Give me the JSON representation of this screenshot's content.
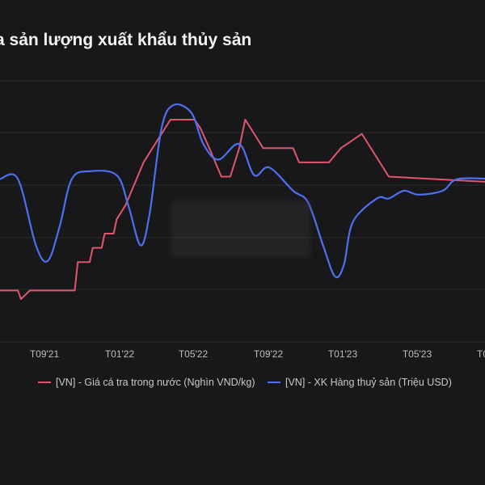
{
  "title": "a sản lượng xuất khẩu thủy sản",
  "colors": {
    "background": "#18181b",
    "series1": "#e0566e",
    "series2": "#4d6ff0",
    "grid": "#2b2b2f"
  },
  "chart_data": {
    "type": "line",
    "x_tick_labels": [
      "T09'21",
      "T01'22",
      "T05'22",
      "T09'22",
      "T01'23",
      "T05'23",
      "T0"
    ],
    "grid": true,
    "legend_position": "bottom",
    "series": [
      {
        "name": "[VN] - Giá cá tra trong nước (Nghìn VND/kg)",
        "points": [
          [
            0.0,
            9.5
          ],
          [
            0.6,
            9.5
          ],
          [
            0.7,
            9.2
          ],
          [
            1.0,
            9.5
          ],
          [
            2.5,
            9.5
          ],
          [
            2.6,
            10.5
          ],
          [
            3.0,
            10.5
          ],
          [
            3.1,
            11.0
          ],
          [
            3.4,
            11.0
          ],
          [
            3.5,
            11.5
          ],
          [
            3.8,
            11.5
          ],
          [
            3.9,
            12.0
          ],
          [
            4.2,
            12.5
          ],
          [
            4.8,
            14.0
          ],
          [
            5.1,
            14.5
          ],
          [
            5.7,
            15.5
          ],
          [
            6.5,
            15.5
          ],
          [
            6.7,
            15.2
          ],
          [
            7.0,
            14.5
          ],
          [
            7.4,
            13.5
          ],
          [
            7.7,
            13.5
          ],
          [
            8.0,
            14.5
          ],
          [
            8.2,
            15.5
          ],
          [
            8.5,
            15.0
          ],
          [
            8.8,
            14.5
          ],
          [
            9.8,
            14.5
          ],
          [
            10.0,
            14.0
          ],
          [
            11.0,
            14.0
          ],
          [
            11.4,
            14.5
          ],
          [
            12.1,
            15.0
          ],
          [
            12.7,
            14.0
          ],
          [
            13.0,
            13.5
          ],
          [
            16.5,
            13.3
          ]
        ]
      },
      {
        "name": "[VN] - XK Hàng thuỷ sản (Triệu USD)",
        "points": [
          [
            0.0,
            870
          ],
          [
            0.6,
            870
          ],
          [
            1.2,
            700
          ],
          [
            1.6,
            660
          ],
          [
            2.0,
            750
          ],
          [
            2.4,
            870
          ],
          [
            3.0,
            890
          ],
          [
            3.9,
            880
          ],
          [
            4.3,
            800
          ],
          [
            4.7,
            700
          ],
          [
            5.0,
            780
          ],
          [
            5.4,
            1000
          ],
          [
            5.8,
            1060
          ],
          [
            6.4,
            1040
          ],
          [
            6.8,
            960
          ],
          [
            7.3,
            920
          ],
          [
            8.0,
            960
          ],
          [
            8.5,
            880
          ],
          [
            9.0,
            900
          ],
          [
            9.8,
            840
          ],
          [
            10.3,
            810
          ],
          [
            10.8,
            700
          ],
          [
            11.2,
            620
          ],
          [
            11.5,
            650
          ],
          [
            11.8,
            760
          ],
          [
            12.6,
            820
          ],
          [
            13.0,
            820
          ],
          [
            13.5,
            840
          ],
          [
            14.0,
            830
          ],
          [
            14.8,
            840
          ],
          [
            15.3,
            870
          ],
          [
            16.5,
            870
          ]
        ]
      }
    ]
  },
  "legend": {
    "item1": "[VN] - Giá cá tra trong nước (Nghìn VND/kg)",
    "item2": "[VN] - XK Hàng thuỷ sản (Triệu USD)"
  }
}
